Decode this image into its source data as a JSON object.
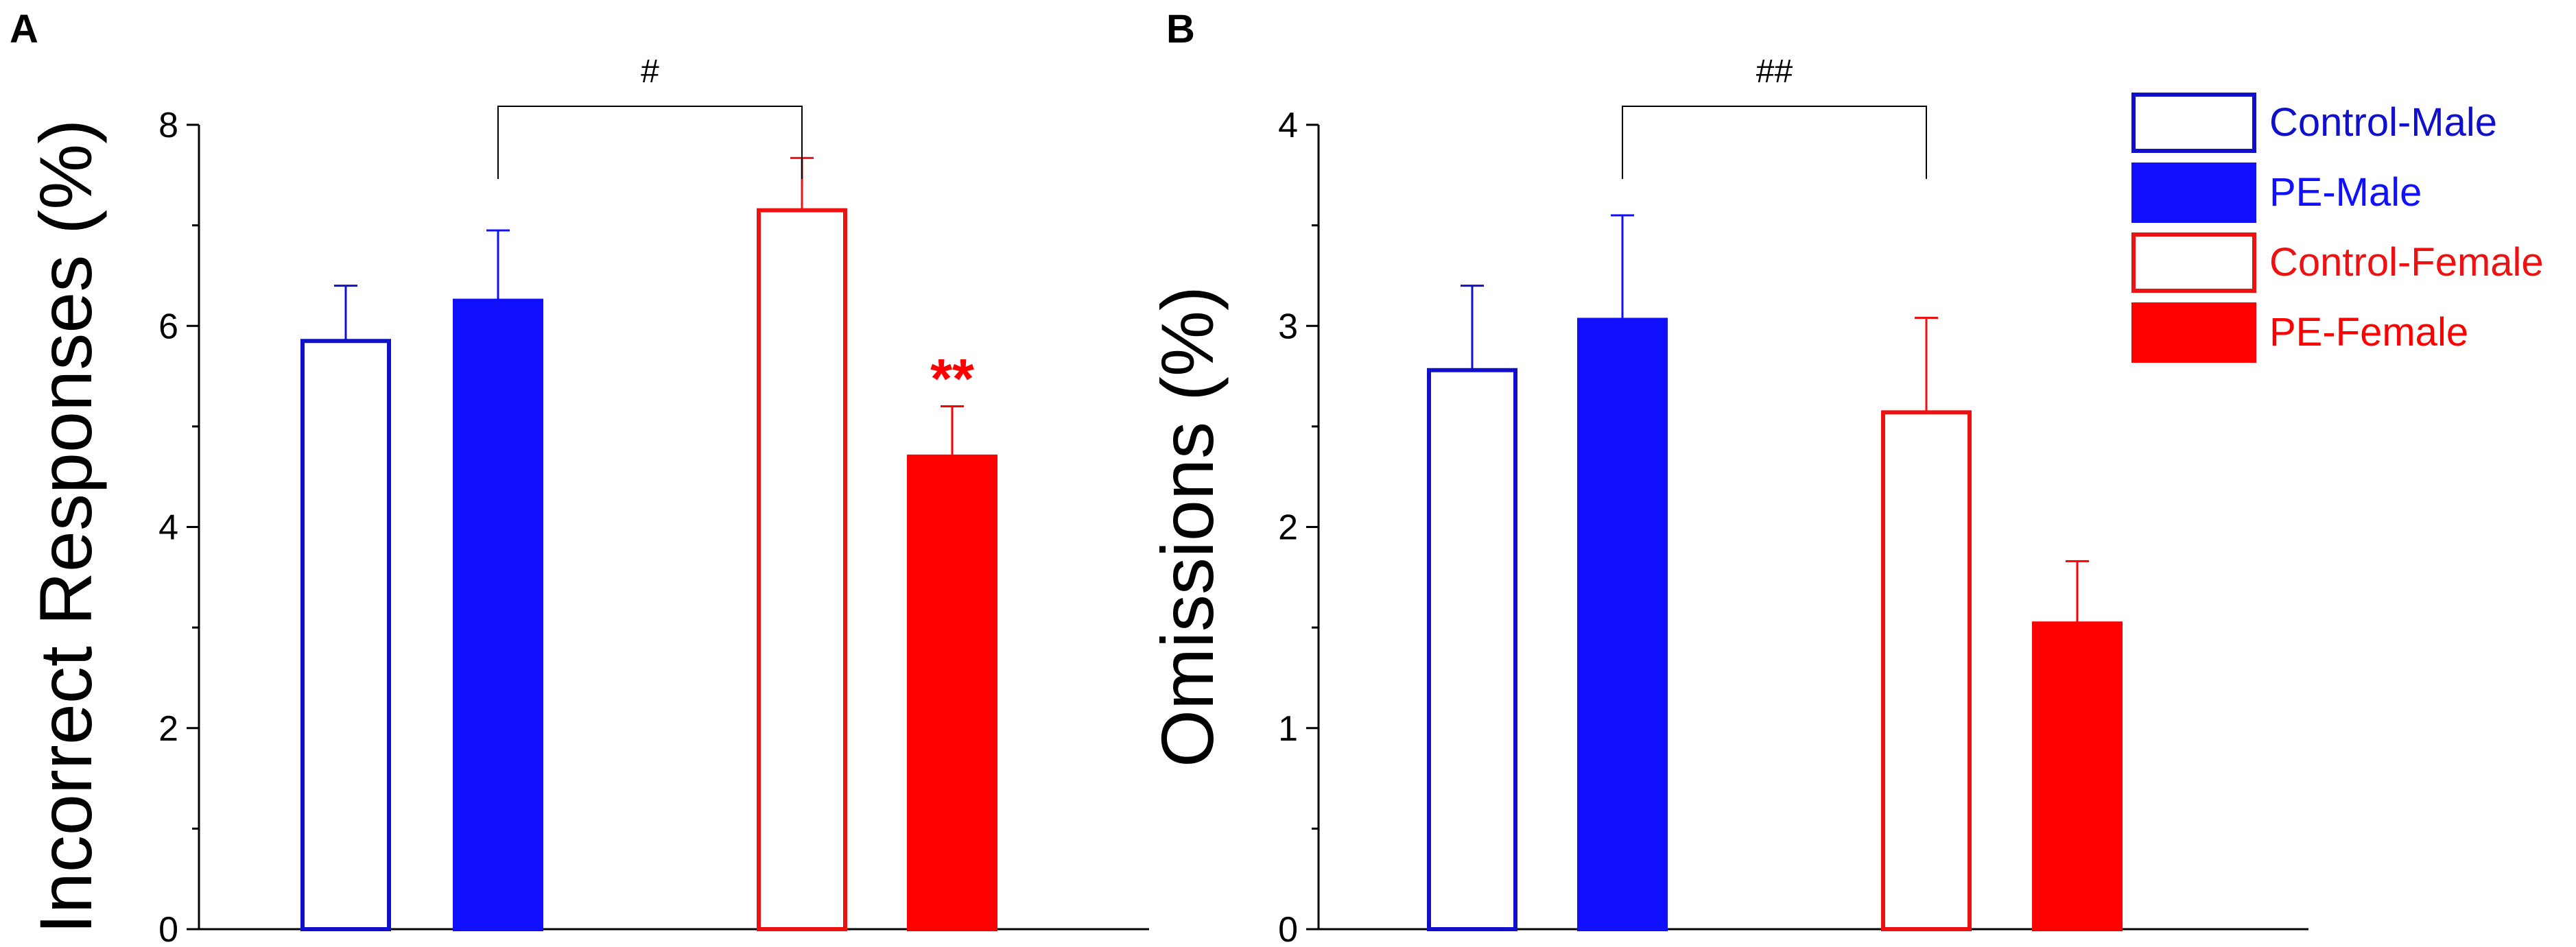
{
  "chart_data": [
    {
      "panel": "A",
      "type": "bar",
      "ylabel": "Incorrect Responses (%)",
      "ylim": [
        0,
        8
      ],
      "yticks": [
        0,
        2,
        4,
        6,
        8
      ],
      "categories": [
        "Control-Male",
        "PE-Male",
        "Control-Female",
        "PE-Female"
      ],
      "values": [
        5.85,
        6.25,
        7.15,
        4.7
      ],
      "errors": [
        0.55,
        0.7,
        0.52,
        0.5
      ],
      "significance": [
        {
          "from": 1,
          "to": 2,
          "label": "#"
        },
        {
          "bar": 3,
          "label": "**"
        }
      ]
    },
    {
      "panel": "B",
      "type": "bar",
      "ylabel": "Omissions (%)",
      "ylim": [
        0,
        4
      ],
      "yticks": [
        0,
        1,
        2,
        3,
        4
      ],
      "categories": [
        "Control-Male",
        "PE-Male",
        "Control-Female",
        "PE-Female"
      ],
      "values": [
        2.78,
        3.03,
        2.57,
        1.52
      ],
      "errors": [
        0.42,
        0.52,
        0.47,
        0.31
      ],
      "significance": [
        {
          "from": 1,
          "to": 2,
          "label": "##"
        }
      ]
    }
  ],
  "legend": [
    {
      "label": "Control-Male",
      "color": "#1010CC",
      "filled": false
    },
    {
      "label": "PE-Male",
      "color": "#1010FF",
      "filled": true
    },
    {
      "label": "Control-Female",
      "color": "#EE1111",
      "filled": false
    },
    {
      "label": "PE-Female",
      "color": "#FF0000",
      "filled": true
    }
  ],
  "colors": {
    "blue_outline": "#1010CC",
    "blue_fill": "#1010FF",
    "red_outline": "#EE1111",
    "red_fill": "#FF0000",
    "axis": "#000000"
  }
}
